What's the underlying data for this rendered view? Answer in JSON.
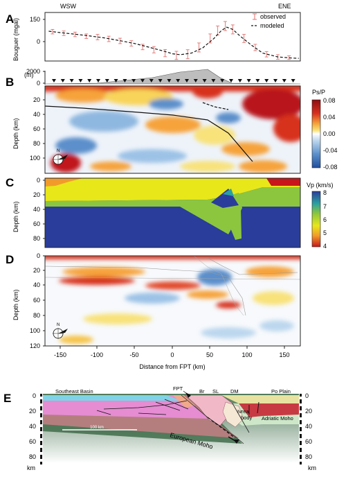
{
  "panels": {
    "A": {
      "label": "A",
      "left_title": "WSW",
      "right_title": "ENE",
      "ylabel": "Bouguer (mgal)",
      "yticks": [
        "150",
        "0"
      ],
      "legend_observed": "observed",
      "legend_modeled": "modeled"
    },
    "B": {
      "label": "B",
      "topo_label": "(m)",
      "topo_ticks": [
        "2000",
        "0"
      ],
      "ylabel": "Depth (km)",
      "yticks": [
        "20",
        "40",
        "60",
        "80",
        "100"
      ],
      "colorbar_title": "Ps/P",
      "colorbar_ticks": [
        "0.08",
        "0.04",
        "0.00",
        "-0.04",
        "-0.08"
      ],
      "compass": "N"
    },
    "C": {
      "label": "C",
      "ylabel": "Depth (km)",
      "yticks": [
        "0",
        "20",
        "40",
        "60",
        "80"
      ],
      "colorbar_title": "Vp (km/s)",
      "colorbar_ticks": [
        "8",
        "7",
        "6",
        "5",
        "4"
      ]
    },
    "D": {
      "label": "D",
      "ylabel": "Depth (km)",
      "yticks": [
        "0",
        "20",
        "40",
        "60",
        "80",
        "100",
        "120"
      ],
      "xticks": [
        "-150",
        "-100",
        "-50",
        "0",
        "50",
        "100",
        "150"
      ],
      "xlabel": "Distance from FPT (km)",
      "compass": "N"
    },
    "E": {
      "label": "E",
      "left_region": "Southeast Basin",
      "right_region": "Po Plain",
      "fault": "FPT",
      "unit_br": "Br",
      "unit_sl": "SL",
      "unit_dm": "DM",
      "ivrea_line1": "Ivrea",
      "ivrea_line2": "body",
      "adriatic_moho": "Adriatic Moho",
      "european_moho": "European Moho",
      "scale": "100 km",
      "depth_ticks": [
        "0",
        "20",
        "40",
        "60",
        "80"
      ],
      "unit": "km"
    }
  },
  "colors": {
    "observed": "#e0706e",
    "modeled": "#111111",
    "topography": "#bdbdbd",
    "ps_red": "#c0161b",
    "ps_yellow": "#f2d43a",
    "ps_blue": "#3f6fb2",
    "vp_blue": "#2a3d9a",
    "vp_green": "#8cc63f",
    "vp_yellow": "#e8e71a",
    "vp_orange": "#f29b2b"
  },
  "chart_data": [
    {
      "type": "line",
      "title": "",
      "xlabel": "Distance from FPT (km)",
      "ylabel": "Bouguer (mgal)",
      "xlim": [
        -170,
        170
      ],
      "ylim": [
        -40,
        175
      ],
      "series": [
        {
          "name": "observed",
          "x": [
            -160,
            -145,
            -130,
            -115,
            -100,
            -85,
            -70,
            -55,
            -40,
            -25,
            -10,
            5,
            20,
            35,
            50,
            60,
            70,
            80,
            95,
            110,
            125,
            140,
            155
          ],
          "y": [
            90,
            83,
            78,
            70,
            66,
            58,
            49,
            38,
            22,
            10,
            -5,
            -15,
            -10,
            20,
            60,
            95,
            115,
            100,
            60,
            20,
            -10,
            -22,
            -25
          ],
          "error": [
            10,
            10,
            10,
            10,
            12,
            12,
            12,
            12,
            12,
            14,
            16,
            18,
            20,
            20,
            20,
            20,
            20,
            20,
            18,
            14,
            12,
            10,
            8
          ]
        },
        {
          "name": "modeled",
          "x": [
            -165,
            -150,
            -130,
            -110,
            -90,
            -70,
            -50,
            -30,
            -10,
            0,
            10,
            25,
            40,
            55,
            65,
            72,
            80,
            90,
            105,
            120,
            140,
            160,
            168
          ],
          "y": [
            92,
            86,
            79,
            71,
            62,
            50,
            37,
            20,
            2,
            -8,
            -12,
            -5,
            18,
            60,
            95,
            110,
            100,
            70,
            30,
            -5,
            -22,
            -27,
            -28
          ]
        }
      ]
    },
    {
      "type": "heatmap",
      "title": "",
      "xlabel": "Distance from FPT (km)",
      "ylabel": "Depth (km)",
      "xlim": [
        -170,
        170
      ],
      "ylim": [
        0,
        120
      ],
      "color_range": [
        -0.08,
        0.08
      ],
      "colorbar_label": "Ps/P"
    },
    {
      "type": "heatmap",
      "title": "",
      "xlabel": "Distance from FPT (km)",
      "ylabel": "Depth (km)",
      "xlim": [
        -170,
        170
      ],
      "ylim": [
        0,
        90
      ],
      "color_range": [
        4,
        8
      ],
      "colorbar_label": "Vp (km/s)"
    },
    {
      "type": "heatmap",
      "title": "",
      "xlabel": "Distance from FPT (km)",
      "ylabel": "Depth (km)",
      "xlim": [
        -170,
        170
      ],
      "ylim": [
        0,
        120
      ],
      "color_range": [
        -0.08,
        0.08
      ]
    }
  ]
}
